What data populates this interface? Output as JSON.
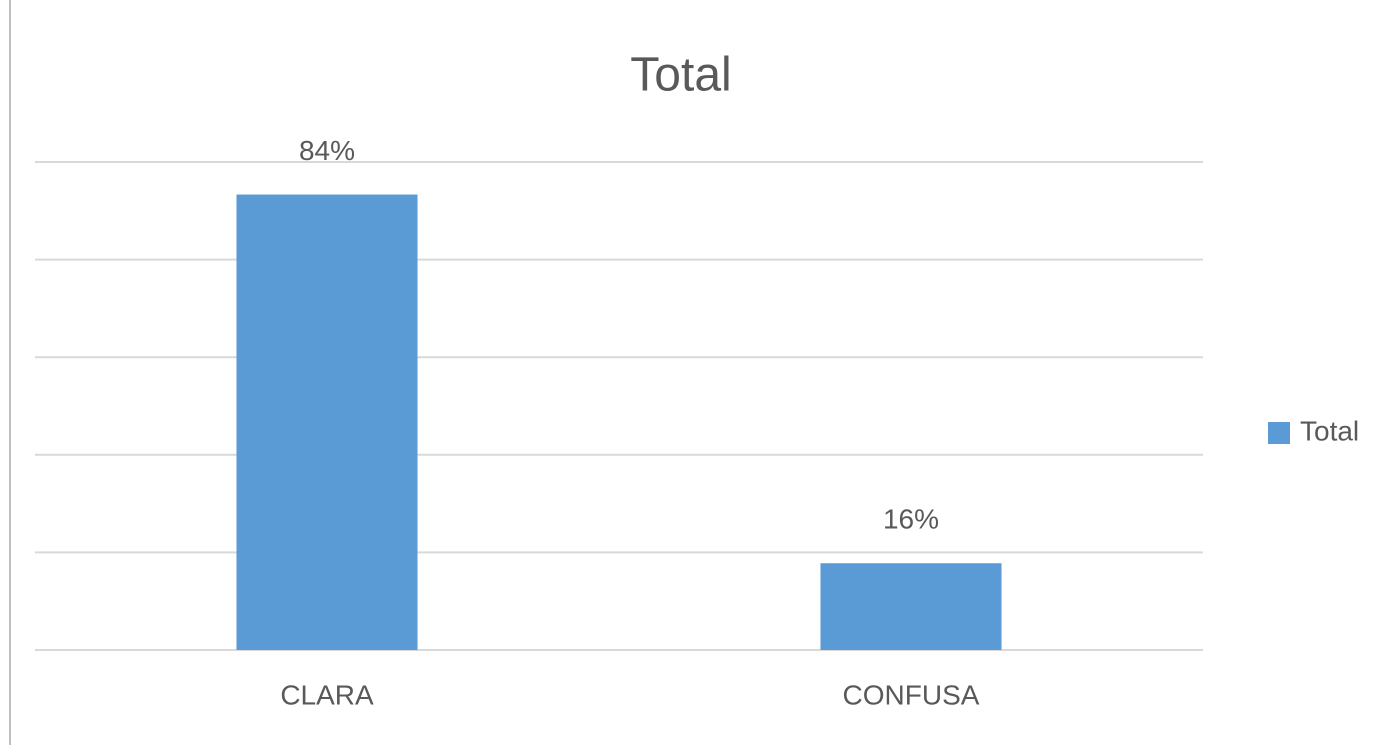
{
  "chart_data": {
    "type": "bar",
    "title": "Total",
    "categories": [
      "CLARA",
      "CONFUSA"
    ],
    "series": [
      {
        "name": "Total",
        "color": "#5b9bd5",
        "values": [
          84,
          16
        ],
        "value_labels": [
          "84%",
          "16%"
        ]
      }
    ],
    "ylim": [
      0,
      90
    ],
    "yticks": [
      0,
      18,
      36,
      54,
      72,
      90
    ],
    "grid": true,
    "legend": "right"
  }
}
